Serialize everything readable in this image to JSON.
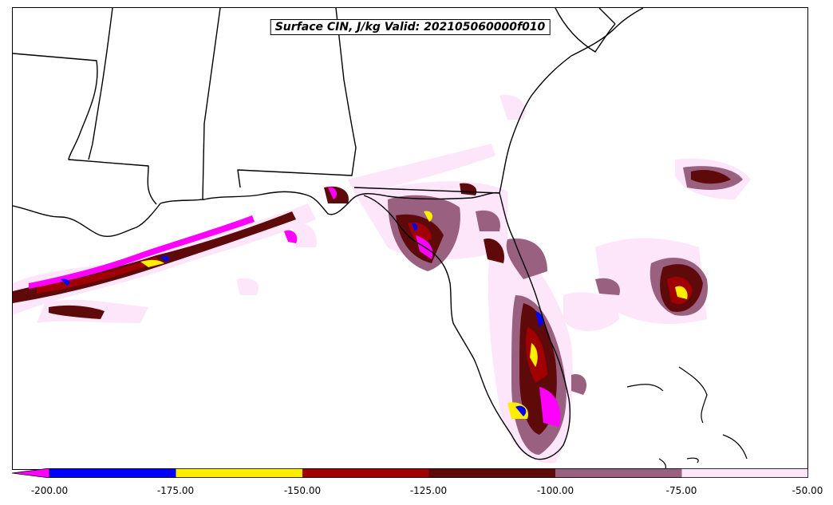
{
  "title": "Surface CIN, J/kg Valid: 202105060000f010",
  "colorbar": {
    "labels": [
      "-200.00",
      "-175.00",
      "-150.00",
      "-125.00",
      "-100.00",
      "-75.00",
      "-50.00"
    ],
    "colors": {
      "below_min": "#ff00ff",
      "bin_200_175": "#0000ff",
      "bin_175_150": "#ffee00",
      "bin_150_125": "#a00000",
      "bin_125_100": "#5e0a0a",
      "bin_100_75": "#9a6080",
      "bin_75_50": "#fde6fa"
    }
  }
}
